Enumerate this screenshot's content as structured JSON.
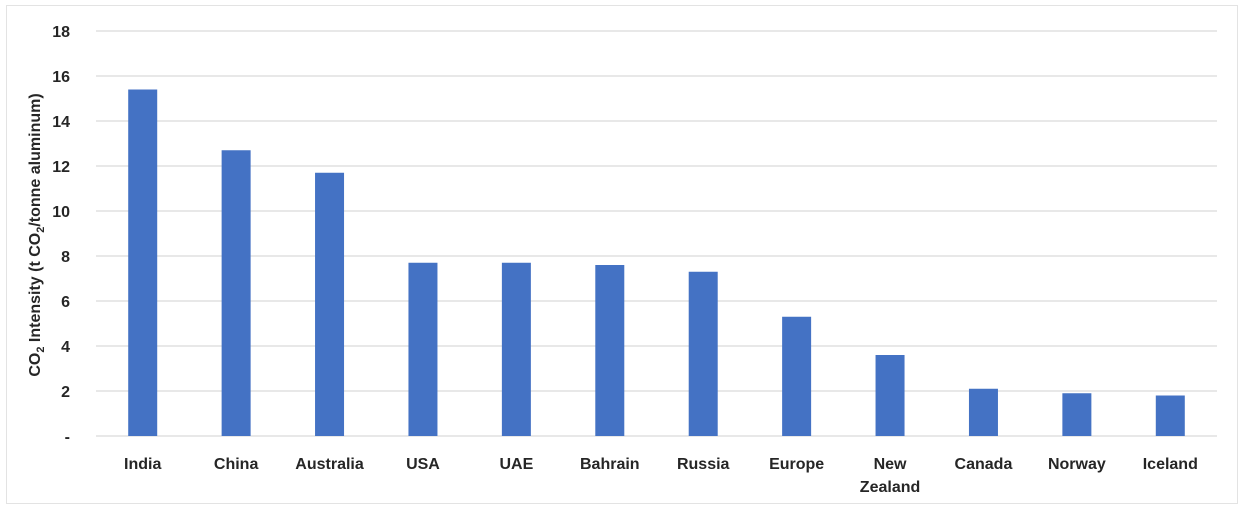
{
  "chart_data": {
    "type": "bar",
    "categories": [
      "India",
      "China",
      "Australia",
      "USA",
      "UAE",
      "Bahrain",
      "Russia",
      "Europe",
      "New Zealand",
      "Canada",
      "Norway",
      "Iceland"
    ],
    "category_lines": [
      [
        "India"
      ],
      [
        "China"
      ],
      [
        "Australia"
      ],
      [
        "USA"
      ],
      [
        "UAE"
      ],
      [
        "Bahrain"
      ],
      [
        "Russia"
      ],
      [
        "Europe"
      ],
      [
        "New",
        "Zealand"
      ],
      [
        "Canada"
      ],
      [
        "Norway"
      ],
      [
        "Iceland"
      ]
    ],
    "values": [
      15.4,
      12.7,
      11.7,
      7.7,
      7.7,
      7.6,
      7.3,
      5.3,
      3.6,
      2.1,
      1.9,
      1.8
    ],
    "title": "",
    "xlabel": "",
    "ylabel": {
      "prefix": "CO",
      "sub1": "2",
      "middle": " Intensity (t CO",
      "sub2": "2",
      "suffix": "/tonne aluminum)"
    },
    "ylim": [
      0,
      18
    ],
    "yticks": [
      0,
      2,
      4,
      6,
      8,
      10,
      12,
      14,
      16,
      18
    ],
    "ytick_labels": [
      "-",
      "2",
      "4",
      "6",
      "8",
      "10",
      "12",
      "14",
      "16",
      "18"
    ],
    "grid": "horizontal",
    "legend": "none",
    "bar_color": "#4472c4",
    "grid_color": "#d9d9d9"
  }
}
